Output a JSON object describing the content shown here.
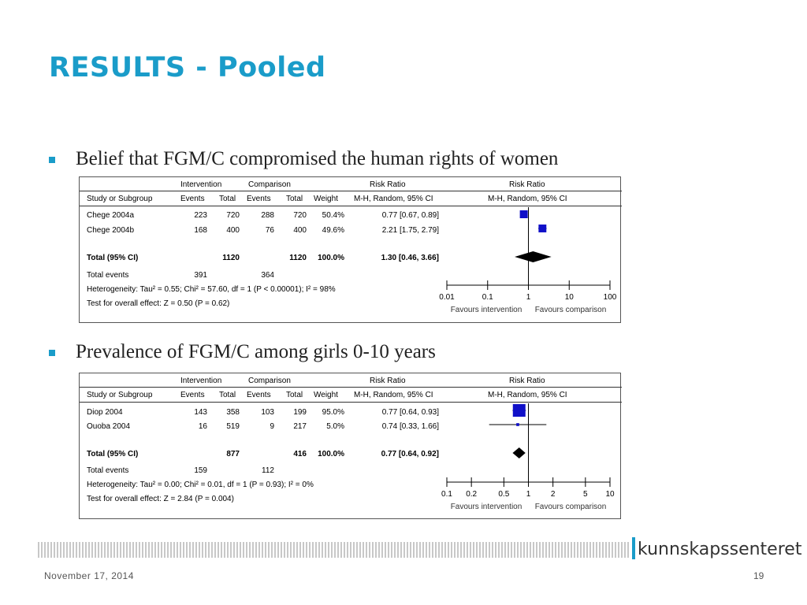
{
  "slide": {
    "title": "RESULTS - Pooled",
    "footer_date": "November 17, 2014",
    "page_number": "19",
    "logo_text": "kunnskapssenteret",
    "accent_color": "#1a9cc9"
  },
  "sections": [
    {
      "bullet": "Belief that FGM/C compromised the human rights of women",
      "headers": {
        "intervention": "Intervention",
        "comparison": "Comparison",
        "rr": "Risk Ratio",
        "rr_plot": "Risk Ratio",
        "study": "Study or Subgroup",
        "events1": "Events",
        "total1": "Total",
        "events2": "Events",
        "total2": "Total",
        "weight": "Weight",
        "method": "M-H, Random, 95% CI",
        "method_plot": "M-H, Random, 95% CI"
      },
      "studies": [
        {
          "name": "Chege 2004a",
          "e1": "223",
          "t1": "720",
          "e2": "288",
          "t2": "720",
          "weight": "50.4%",
          "ci": "0.77 [0.67, 0.89]"
        },
        {
          "name": "Chege 2004b",
          "e1": "168",
          "t1": "400",
          "e2": "76",
          "t2": "400",
          "weight": "49.6%",
          "ci": "2.21 [1.75, 2.79]"
        }
      ],
      "total": {
        "label": "Total (95% CI)",
        "t1": "1120",
        "t2": "1120",
        "weight": "100.0%",
        "ci": "1.30 [0.46, 3.66]"
      },
      "total_events": {
        "label": "Total events",
        "e1": "391",
        "e2": "364"
      },
      "heterogeneity": "Heterogeneity: Tau² = 0.55; Chi² = 57.60, df = 1 (P < 0.00001); I² = 98%",
      "overall": "Test for overall effect: Z = 0.50 (P = 0.62)",
      "axis": {
        "ticks": [
          "0.01",
          "0.1",
          "1",
          "10",
          "100"
        ],
        "left_label": "Favours intervention",
        "right_label": "Favours comparison"
      }
    },
    {
      "bullet": "Prevalence of FGM/C among girls 0-10 years",
      "headers": {
        "intervention": "Intervention",
        "comparison": "Comparison",
        "rr": "Risk Ratio",
        "rr_plot": "Risk Ratio",
        "study": "Study or Subgroup",
        "events1": "Events",
        "total1": "Total",
        "events2": "Events",
        "total2": "Total",
        "weight": "Weight",
        "method": "M-H, Random, 95% CI",
        "method_plot": "M-H, Random, 95% CI"
      },
      "studies": [
        {
          "name": "Diop 2004",
          "e1": "143",
          "t1": "358",
          "e2": "103",
          "t2": "199",
          "weight": "95.0%",
          "ci": "0.77 [0.64, 0.93]"
        },
        {
          "name": "Ouoba 2004",
          "e1": "16",
          "t1": "519",
          "e2": "9",
          "t2": "217",
          "weight": "5.0%",
          "ci": "0.74 [0.33, 1.66]"
        }
      ],
      "total": {
        "label": "Total (95% CI)",
        "t1": "877",
        "t2": "416",
        "weight": "100.0%",
        "ci": "0.77 [0.64, 0.92]"
      },
      "total_events": {
        "label": "Total events",
        "e1": "159",
        "e2": "112"
      },
      "heterogeneity": "Heterogeneity: Tau² = 0.00; Chi² = 0.01, df = 1 (P = 0.93); I² = 0%",
      "overall": "Test for overall effect: Z = 2.84 (P = 0.004)",
      "axis": {
        "ticks": [
          "0.1",
          "0.2",
          "0.5",
          "1",
          "2",
          "5",
          "10"
        ],
        "left_label": "Favours intervention",
        "right_label": "Favours comparison"
      }
    }
  ],
  "chart_data": [
    {
      "type": "scatter",
      "title": "Risk Ratio",
      "xscale": "log",
      "xlim": [
        0.01,
        100
      ],
      "studies": [
        {
          "name": "Chege 2004a",
          "rr": 0.77,
          "lo": 0.67,
          "hi": 0.89,
          "weight": 50.4
        },
        {
          "name": "Chege 2004b",
          "rr": 2.21,
          "lo": 1.75,
          "hi": 2.79,
          "weight": 49.6
        }
      ],
      "pooled": {
        "rr": 1.3,
        "lo": 0.46,
        "hi": 3.66
      }
    },
    {
      "type": "scatter",
      "title": "Risk Ratio",
      "xscale": "log",
      "xlim": [
        0.1,
        10
      ],
      "studies": [
        {
          "name": "Diop 2004",
          "rr": 0.77,
          "lo": 0.64,
          "hi": 0.93,
          "weight": 95.0
        },
        {
          "name": "Ouoba 2004",
          "rr": 0.74,
          "lo": 0.33,
          "hi": 1.66,
          "weight": 5.0
        }
      ],
      "pooled": {
        "rr": 0.77,
        "lo": 0.64,
        "hi": 0.92
      }
    }
  ]
}
